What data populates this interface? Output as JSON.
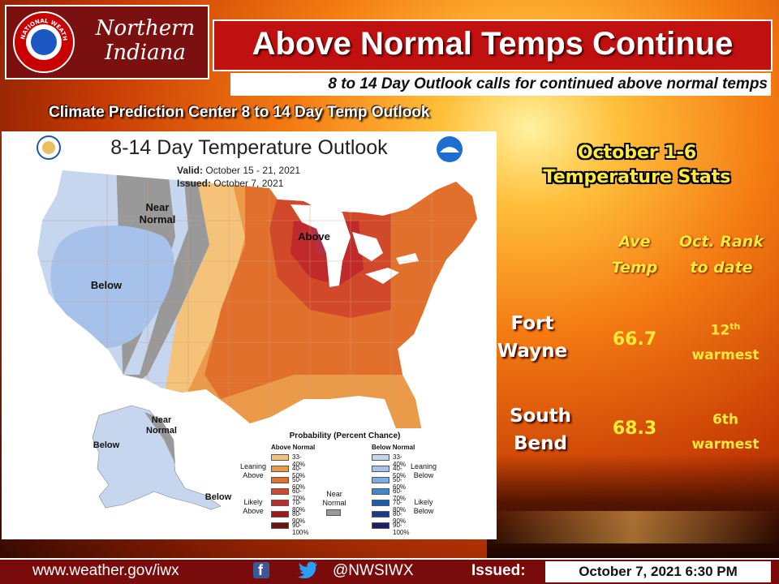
{
  "header": {
    "region_line1": "Northern",
    "region_line2": "Indiana",
    "title": "Above Normal Temps Continue",
    "subtitle": "8 to 14 Day Outlook calls for continued above normal temps",
    "seal_text": "NATIONAL WEATHER SERVICE"
  },
  "map_section": {
    "caption": "Climate Prediction Center 8 to 14 Day Temp Outlook",
    "map_title": "8-14 Day Temperature Outlook",
    "valid_label": "Valid:",
    "valid_value": "October 15 - 21, 2021",
    "issued_label": "Issued:",
    "issued_value": "October 7, 2021",
    "labels": {
      "near_normal": "Near Normal",
      "above": "Above",
      "below": "Below",
      "alaska_near_normal": "Near Normal",
      "alaska_below_west": "Below",
      "alaska_below_south": "Below"
    },
    "legend": {
      "title": "Probability (Percent Chance)",
      "above_header": "Above Normal",
      "below_header": "Below Normal",
      "leaning_above": "Leaning Above",
      "likely_above": "Likely Above",
      "near_normal": "Near Normal",
      "leaning_below": "Leaning Below",
      "likely_below": "Likely Below",
      "ranges": [
        "33-40%",
        "40-50%",
        "50-60%",
        "60-70%",
        "70-80%",
        "80-90%",
        "90-100%"
      ],
      "above_colors": [
        "#f5c27a",
        "#eb9a4a",
        "#e0702c",
        "#d2482a",
        "#c02a2a",
        "#9a1a1a",
        "#6a1010"
      ],
      "below_colors": [
        "#c6d6ee",
        "#a6c2ea",
        "#7aaee6",
        "#3e86d6",
        "#1a5eb4",
        "#1a3a8e",
        "#1c1e6a"
      ],
      "near_color": "#999999"
    },
    "agency_icons": [
      "commerce-seal-icon",
      "noaa-logo-icon"
    ]
  },
  "stats": {
    "title_line1": "October 1-6",
    "title_line2": "Temperature Stats",
    "col_ave_line1": "Ave",
    "col_ave_line2": "Temp",
    "col_rank_line1": "Oct. Rank",
    "col_rank_line2": "to date",
    "rows": [
      {
        "city_line1": "Fort",
        "city_line2": "Wayne",
        "ave": "66.7",
        "rank_num": "12",
        "rank_suffix": "th",
        "rank_word": "warmest"
      },
      {
        "city_line1": "South",
        "city_line2": "Bend",
        "ave": "68.3",
        "rank_num": "6th",
        "rank_suffix": "",
        "rank_word": "warmest"
      }
    ]
  },
  "footer": {
    "url": "www.weather.gov/iwx",
    "handle": "@NWSIWX",
    "issued_label": "Issued:",
    "issued_value": "October 7, 2021  6:30 PM"
  }
}
